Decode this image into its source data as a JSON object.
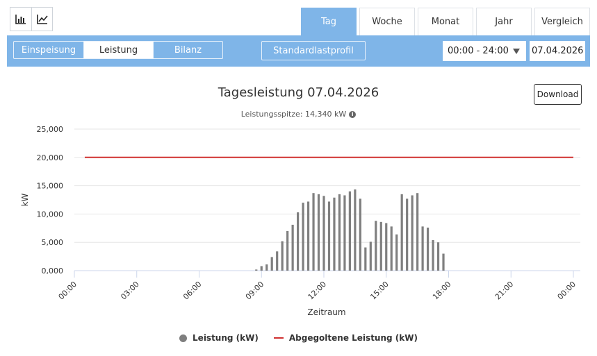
{
  "toolbar": {
    "chart_icons": [
      {
        "icon": "bar-chart-icon"
      },
      {
        "icon": "line-chart-icon"
      }
    ],
    "period_tabs": [
      "Tag",
      "Woche",
      "Monat",
      "Jahr",
      "Vergleich"
    ],
    "active_tab": "Tag",
    "modes": [
      "Einspeisung",
      "Leistung",
      "Bilanz"
    ],
    "active_mode": "Leistung",
    "standard_profile": "Standardlastprofil",
    "time_range": "00:00 - 24:00",
    "date": "07.04.2026"
  },
  "header": {
    "title": "Tagesleistung 07.04.2026",
    "subtitle": "Leistungsspitze: 14,340 kW",
    "download": "Download"
  },
  "colors": {
    "accent": "#7fb5e8",
    "bar": "#7f7f7f",
    "line": "#d0302f"
  },
  "chart_data": {
    "type": "bar",
    "xlabel": "Zeitraum",
    "ylabel": "kW",
    "ylim": [
      0,
      25000
    ],
    "yticks": [
      "0,000",
      "5,000",
      "10,000",
      "15,000",
      "20,000",
      "25,000"
    ],
    "xlim": [
      0,
      24
    ],
    "xticks": [
      "00:00",
      "03:00",
      "06:00",
      "09:00",
      "12:00",
      "15:00",
      "18:00",
      "21:00",
      "00:00"
    ],
    "grid": true,
    "legend_position": "bottom",
    "series": [
      {
        "name": "Leistung (kW)",
        "kind": "bar",
        "x": [
          8.75,
          9.0,
          9.25,
          9.5,
          9.75,
          10.0,
          10.25,
          10.5,
          10.75,
          11.0,
          11.25,
          11.5,
          11.75,
          12.0,
          12.25,
          12.5,
          12.75,
          13.0,
          13.25,
          13.5,
          13.75,
          14.0,
          14.25,
          14.5,
          14.75,
          15.0,
          15.25,
          15.5,
          15.75,
          16.0,
          16.25,
          16.5,
          16.75,
          17.0,
          17.25,
          17.5,
          17.75
        ],
        "values": [
          200,
          800,
          1100,
          2400,
          3400,
          5200,
          7000,
          8100,
          10300,
          12000,
          12200,
          13700,
          13500,
          13200,
          12200,
          12900,
          13500,
          13300,
          14000,
          14340,
          12700,
          4100,
          5100,
          8800,
          8600,
          8400,
          7800,
          6400,
          13500,
          12700,
          13300,
          13700,
          7800,
          7600,
          5400,
          5000,
          3000
        ]
      },
      {
        "name": "Abgegoltene Leistung (kW)",
        "kind": "line",
        "x": [
          0.5,
          24
        ],
        "values": [
          20000,
          20000
        ]
      }
    ]
  }
}
